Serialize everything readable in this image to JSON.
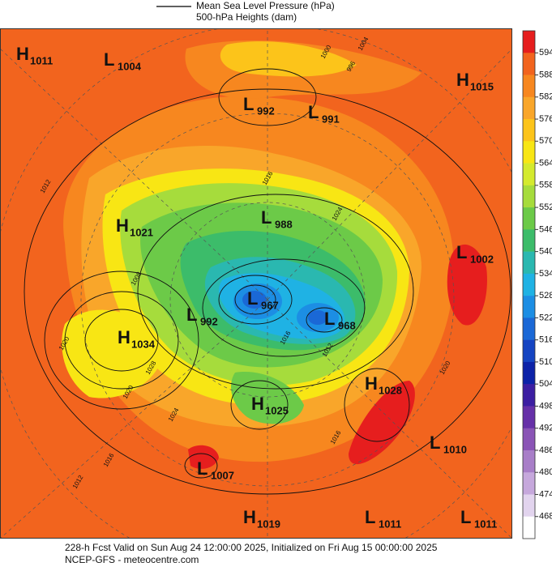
{
  "header": {
    "line_legend": "Mean Sea Level Pressure (hPa)",
    "fill_legend": "500-hPa Heights (dam)"
  },
  "colorbar": {
    "levels": [
      594,
      588,
      582,
      576,
      570,
      564,
      558,
      552,
      546,
      540,
      534,
      528,
      522,
      516,
      510,
      504,
      498,
      492,
      486,
      480,
      474,
      468
    ],
    "fill_colors": [
      "#e61e1e",
      "#f2641e",
      "#f7871f",
      "#f9a62a",
      "#fcc41a",
      "#f8e614",
      "#d4ea2e",
      "#a6dc3c",
      "#6cca48",
      "#3cbc6a",
      "#2ab8b0",
      "#1fb2e4",
      "#1c8ee4",
      "#1a68d6",
      "#1444c2",
      "#0c22a8",
      "#3c1ea2",
      "#6630a8",
      "#8a54b6",
      "#a87ec8",
      "#c6a8dc",
      "#e2d4ee",
      "#ffffff"
    ]
  },
  "centers": [
    {
      "type": "H",
      "value": 1011
    },
    {
      "type": "L",
      "value": 1004
    },
    {
      "type": "H",
      "value": 1015
    },
    {
      "type": "L",
      "value": 992
    },
    {
      "type": "L",
      "value": 991
    },
    {
      "type": "H",
      "value": 1021
    },
    {
      "type": "L",
      "value": 988
    },
    {
      "type": "L",
      "value": 1002
    },
    {
      "type": "L",
      "value": 967
    },
    {
      "type": "L",
      "value": 968
    },
    {
      "type": "L",
      "value": 992
    },
    {
      "type": "H",
      "value": 1034
    },
    {
      "type": "H",
      "value": 1028
    },
    {
      "type": "H",
      "value": 1025
    },
    {
      "type": "L",
      "value": 1010
    },
    {
      "type": "L",
      "value": 1007
    },
    {
      "type": "H",
      "value": 1019
    },
    {
      "type": "L",
      "value": 1011
    },
    {
      "type": "L",
      "value": 1011
    }
  ],
  "isobar_labels": [
    1000,
    1004,
    996,
    1012,
    1016,
    1024,
    1008,
    1020,
    1028,
    1020,
    1024,
    1016,
    1016,
    1012,
    1012,
    1016,
    1020
  ],
  "footer": {
    "forecast": "228-h Fcst Valid on Sun Aug 24 12:00:00 2025, Initialized on Fri Aug 15 00:00:00 2025",
    "source": "NCEP-GFS - meteocentre.com"
  }
}
